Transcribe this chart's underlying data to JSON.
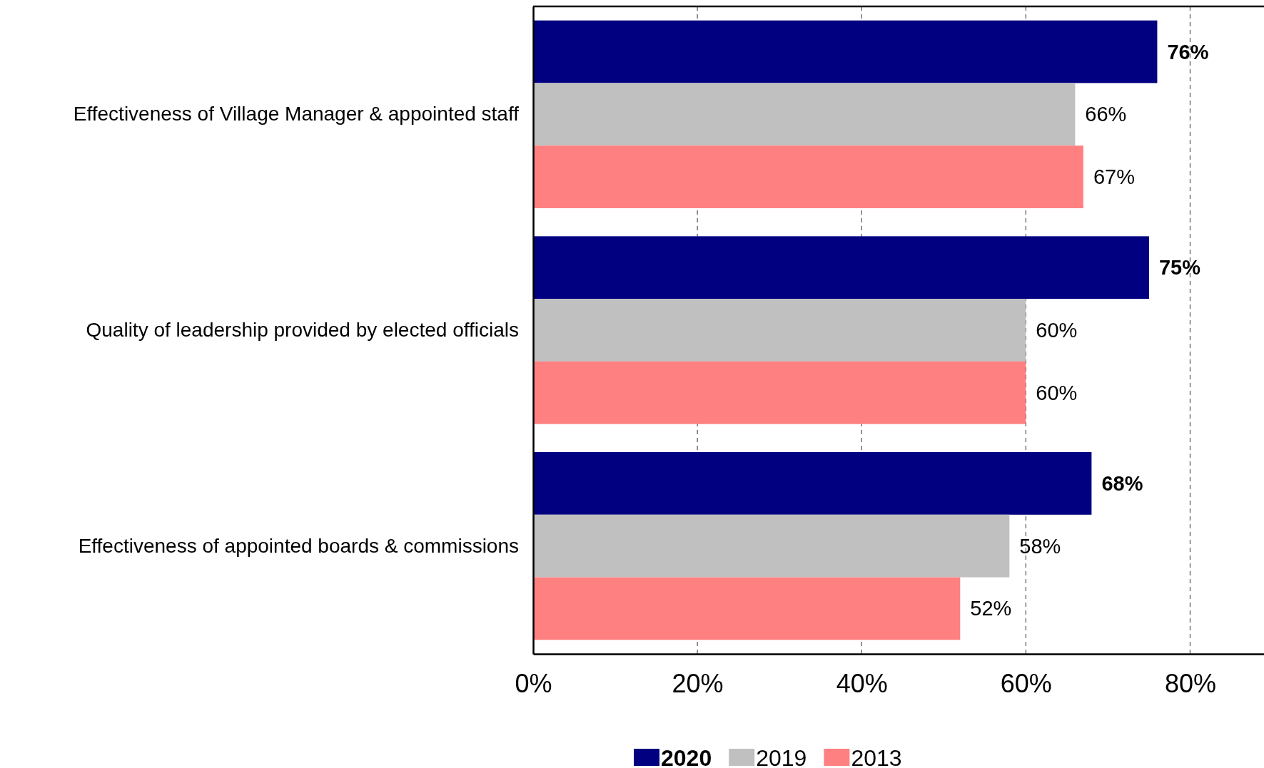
{
  "chart_data": {
    "type": "bar",
    "orientation": "horizontal",
    "categories": [
      "Effectiveness of Village Manager & appointed staff",
      "Quality of leadership provided by elected officials",
      "Effectiveness of appointed boards & commissions"
    ],
    "series": [
      {
        "name": "2020",
        "color": "#000080",
        "values": [
          76,
          75,
          68
        ],
        "value_labels": [
          "76%",
          "75%",
          "68%"
        ]
      },
      {
        "name": "2019",
        "color": "#c0c0c0",
        "values": [
          66,
          60,
          58
        ],
        "value_labels": [
          "66%",
          "60%",
          "58%"
        ]
      },
      {
        "name": "2013",
        "color": "#ff8080",
        "values": [
          67,
          60,
          52
        ],
        "value_labels": [
          "67%",
          "60%",
          "52%"
        ]
      }
    ],
    "xlim": [
      0,
      89
    ],
    "xticks": [
      {
        "value": 0,
        "label": "0%"
      },
      {
        "value": 20,
        "label": "20%"
      },
      {
        "value": 40,
        "label": "40%"
      },
      {
        "value": 60,
        "label": "60%"
      },
      {
        "value": 80,
        "label": "80%"
      }
    ],
    "grid": "x",
    "legend": "bottom"
  }
}
